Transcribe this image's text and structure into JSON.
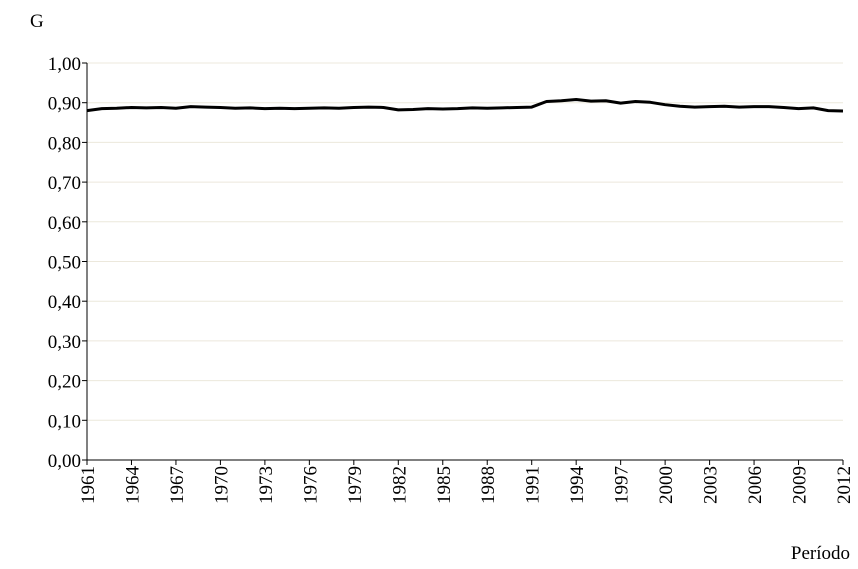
{
  "chart_data": {
    "type": "line",
    "y_label": "G",
    "x_label": "Período",
    "x": [
      1961,
      1962,
      1963,
      1964,
      1965,
      1966,
      1967,
      1968,
      1969,
      1970,
      1971,
      1972,
      1973,
      1974,
      1975,
      1976,
      1977,
      1978,
      1979,
      1980,
      1981,
      1982,
      1983,
      1984,
      1985,
      1986,
      1987,
      1988,
      1989,
      1990,
      1991,
      1992,
      1993,
      1994,
      1995,
      1996,
      1997,
      1998,
      1999,
      2000,
      2001,
      2002,
      2003,
      2004,
      2005,
      2006,
      2007,
      2008,
      2009,
      2010,
      2011,
      2012
    ],
    "values": [
      0.88,
      0.885,
      0.886,
      0.888,
      0.887,
      0.888,
      0.886,
      0.89,
      0.889,
      0.888,
      0.886,
      0.887,
      0.885,
      0.886,
      0.885,
      0.886,
      0.887,
      0.886,
      0.888,
      0.889,
      0.888,
      0.882,
      0.883,
      0.885,
      0.884,
      0.885,
      0.887,
      0.886,
      0.887,
      0.888,
      0.889,
      0.903,
      0.905,
      0.908,
      0.904,
      0.905,
      0.899,
      0.903,
      0.901,
      0.895,
      0.891,
      0.889,
      0.89,
      0.891,
      0.889,
      0.89,
      0.89,
      0.888,
      0.885,
      0.887,
      0.88,
      0.879
    ],
    "color": "#000000",
    "xlim": [
      1961,
      2012
    ],
    "xticks": [
      1961,
      1964,
      1967,
      1970,
      1973,
      1976,
      1979,
      1982,
      1985,
      1988,
      1991,
      1994,
      1997,
      2000,
      2003,
      2006,
      2009,
      2012
    ],
    "ylim": [
      0,
      1
    ],
    "yticks": [
      {
        "value": 0,
        "label": "0,00"
      },
      {
        "value": 0.1,
        "label": "0,10"
      },
      {
        "value": 0.2,
        "label": "0,20"
      },
      {
        "value": 0.3,
        "label": "0,30"
      },
      {
        "value": 0.4,
        "label": "0,40"
      },
      {
        "value": 0.5,
        "label": "0,50"
      },
      {
        "value": 0.6,
        "label": "0,60"
      },
      {
        "value": 0.7,
        "label": "0,70"
      },
      {
        "value": 0.8,
        "label": "0,80"
      },
      {
        "value": 0.9,
        "label": "0,90"
      },
      {
        "value": 1,
        "label": "1,00"
      }
    ],
    "grid": true
  }
}
